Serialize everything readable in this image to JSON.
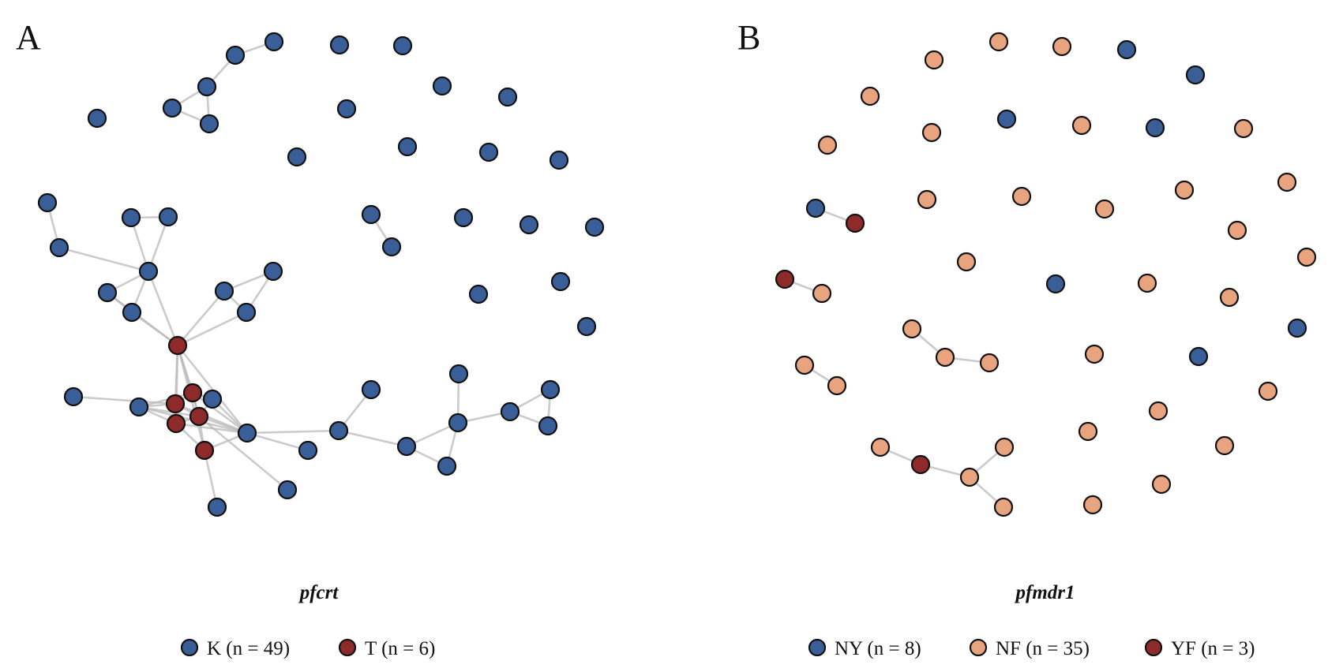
{
  "colors": {
    "blue": "#3a5f98",
    "peach": "#e8a47f",
    "red": "#8e2a2a",
    "edge": "#b9b9b9",
    "outline": "#111111"
  },
  "panelA": {
    "letter": "A",
    "gene": "pfcrt",
    "legend": [
      {
        "label": "K (n = 49)",
        "color": "blue"
      },
      {
        "label": "T (n = 6)",
        "color": "red"
      }
    ]
  },
  "panelB": {
    "letter": "B",
    "gene": "pfmdr1",
    "legend": [
      {
        "label": "NY (n = 8)",
        "color": "blue"
      },
      {
        "label": "NF (n = 35)",
        "color": "peach"
      },
      {
        "label": "YF (n = 3)",
        "color": "red"
      }
    ]
  }
}
